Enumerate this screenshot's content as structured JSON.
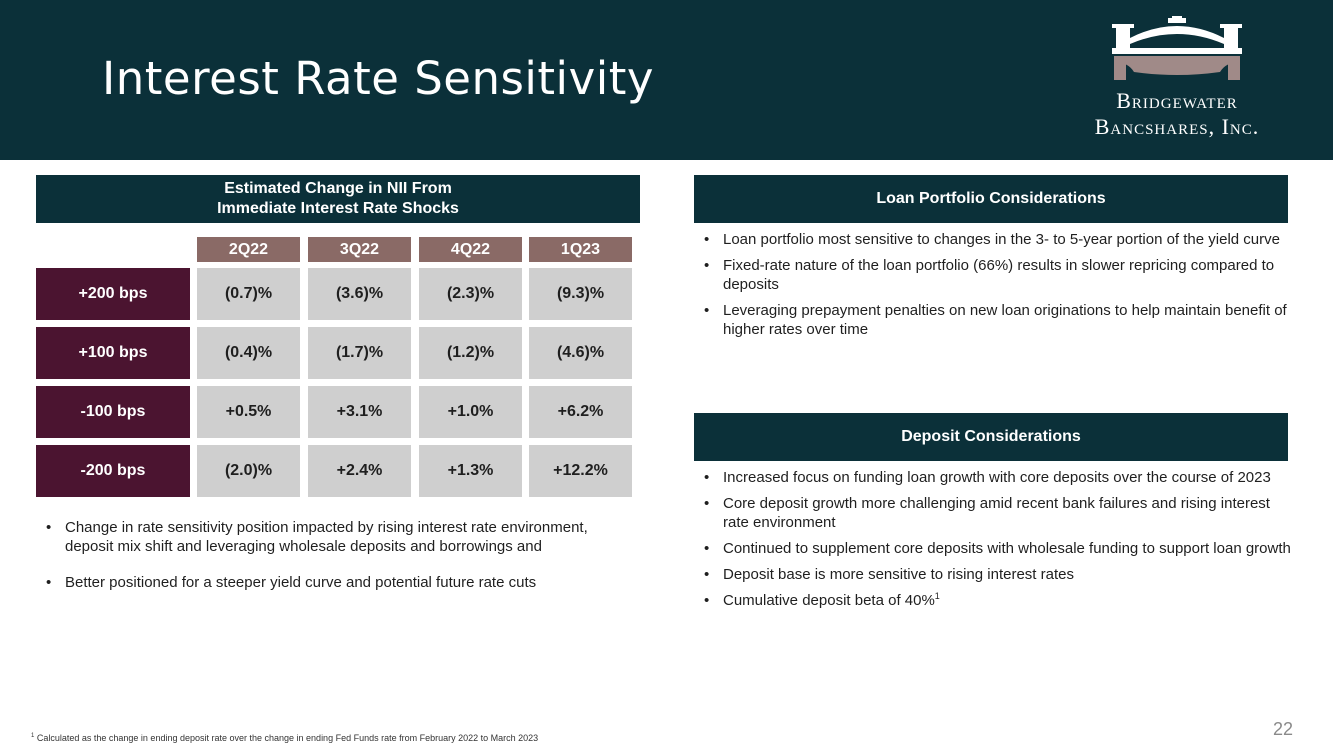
{
  "header": {
    "title": "Interest Rate Sensitivity"
  },
  "logo": {
    "line1": "Bridgewater",
    "line2": "Bancshares, Inc."
  },
  "nii_table": {
    "title_line1": "Estimated Change in NII From",
    "title_line2": "Immediate Interest Rate Shocks",
    "quarters": [
      "2Q22",
      "3Q22",
      "4Q22",
      "1Q23"
    ],
    "rows": [
      {
        "label": "+200 bps",
        "values": [
          "(0.7)%",
          "(3.6)%",
          "(2.3)%",
          "(9.3)%"
        ]
      },
      {
        "label": "+100 bps",
        "values": [
          "(0.4)%",
          "(1.7)%",
          "(1.2)%",
          "(4.6)%"
        ]
      },
      {
        "label": "-100 bps",
        "values": [
          "+0.5%",
          "+3.1%",
          "+1.0%",
          "+6.2%"
        ]
      },
      {
        "label": "-200 bps",
        "values": [
          "(2.0)%",
          "+2.4%",
          "+1.3%",
          "+12.2%"
        ]
      }
    ]
  },
  "left_bullets": [
    "Change in rate sensitivity position impacted by rising interest rate environment, deposit mix shift and leveraging wholesale deposits and borrowings and",
    "Better positioned for a steeper yield curve and potential future rate cuts"
  ],
  "loan_panel": {
    "title": "Loan Portfolio Considerations",
    "bullets": [
      "Loan portfolio most sensitive to changes in the 3- to 5-year portion of the yield curve",
      "Fixed-rate nature of the loan portfolio (66%) results in slower repricing compared to deposits",
      "Leveraging prepayment penalties on new loan originations to help maintain benefit of higher rates over time"
    ]
  },
  "deposit_panel": {
    "title": "Deposit Considerations",
    "bullets": [
      "Increased focus on funding loan growth with core deposits over the course of 2023",
      "Core deposit growth more challenging amid recent bank failures and rising interest rate environment",
      "Continued to supplement core deposits with wholesale funding to support loan growth",
      "Deposit base is more sensitive to rising interest rates",
      "Cumulative deposit beta of 40%"
    ],
    "beta_footnote_marker": "1"
  },
  "footnote": {
    "marker": "1",
    "text": "Calculated as the change in ending deposit rate over the change in ending Fed Funds rate from February 2022 to March 2023"
  },
  "page_number": "22",
  "colors": {
    "navy": "#0b3039",
    "maroon": "#4b1430",
    "taupe": "#8a6a66",
    "cell_gray": "#cfcfcf"
  }
}
